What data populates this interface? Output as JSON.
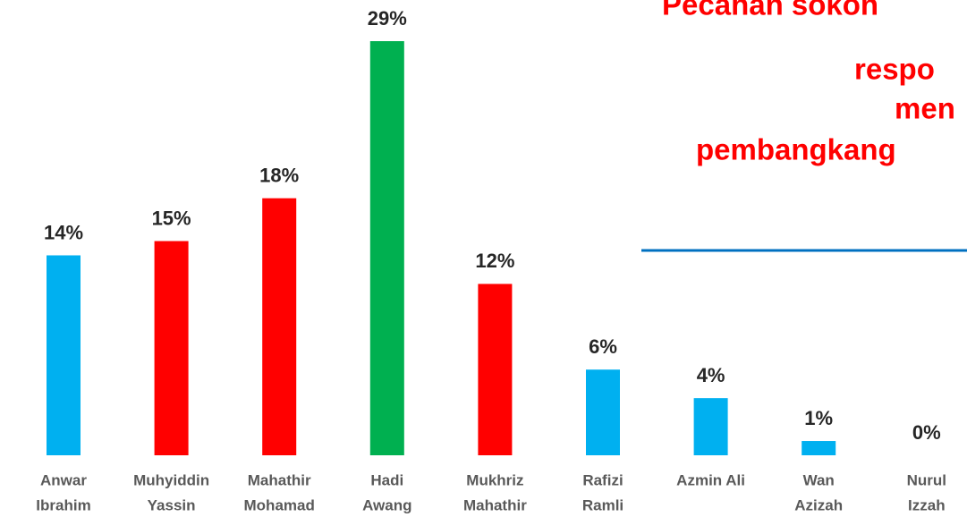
{
  "chart_data": {
    "type": "bar",
    "title_lines": [
      "Pecahan sokon",
      "respo",
      "men",
      "pembangkang"
    ],
    "categories": [
      [
        "Anwar",
        "Ibrahim"
      ],
      [
        "Muhyiddin",
        "Yassin"
      ],
      [
        "Mahathir",
        "Mohamad"
      ],
      [
        "Hadi",
        "Awang"
      ],
      [
        "Mukhriz",
        "Mahathir"
      ],
      [
        "Rafizi",
        "Ramli"
      ],
      [
        "Azmin Ali"
      ],
      [
        "Wan",
        "Azizah"
      ],
      [
        "Nurul",
        "Izzah"
      ]
    ],
    "values": [
      14,
      15,
      18,
      29,
      12,
      6,
      4,
      1,
      0
    ],
    "value_labels": [
      "14%",
      "15%",
      "18%",
      "29%",
      "12%",
      "6%",
      "4%",
      "1%",
      "0%"
    ],
    "colors": [
      "#00b0f0",
      "#ff0000",
      "#ff0000",
      "#00b050",
      "#ff0000",
      "#00b0f0",
      "#00b0f0",
      "#00b0f0",
      "#00b0f0"
    ]
  }
}
